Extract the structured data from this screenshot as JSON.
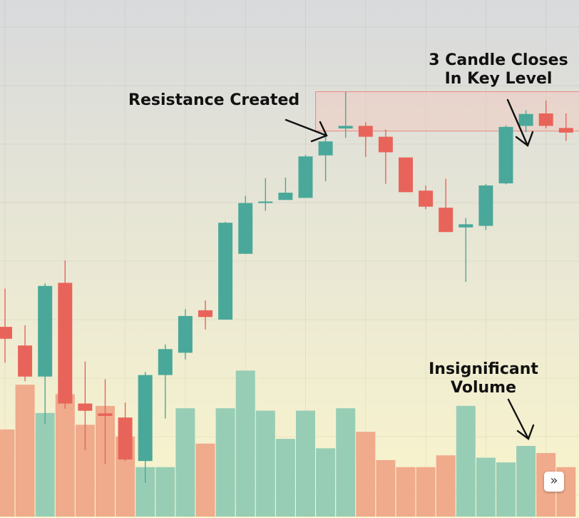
{
  "annotations": {
    "resistance": "Resistance Created",
    "closes_line1": "3 Candle Closes",
    "closes_line2": "In Key Level",
    "volume_line1": "Insignificant",
    "volume_line2": "Volume"
  },
  "scroll_button": {
    "icon": "double-chevron-right-icon",
    "glyph": "»"
  },
  "colors": {
    "up": "#49a89a",
    "down": "#e8645a",
    "volume_up": "#97cdb5",
    "volume_down": "#f0aa8c",
    "zone_fill": "#f5c8bc",
    "zone_border": "#e88a80",
    "bg_top": "#d8dadc",
    "bg_bottom": "#faf5cc"
  },
  "chart_data": {
    "type": "candlestick",
    "y_range": [
      0,
      100
    ],
    "volume_range": [
      0,
      100
    ],
    "zone": {
      "start_index": 16,
      "top": 82.3,
      "bottom": 74.7
    },
    "candles": [
      {
        "o": 36.9,
        "h": 44.3,
        "l": 30.0,
        "c": 34.6,
        "v": 37
      },
      {
        "o": 33.3,
        "h": 37.2,
        "l": 26.4,
        "c": 27.3,
        "v": 56
      },
      {
        "o": 27.3,
        "h": 45.3,
        "l": 18.1,
        "c": 44.8,
        "v": 44
      },
      {
        "o": 45.4,
        "h": 49.7,
        "l": 21.1,
        "c": 22.1,
        "v": 52
      },
      {
        "o": 22.1,
        "h": 30.2,
        "l": 13.1,
        "c": 20.7,
        "v": 39
      },
      {
        "o": 20.2,
        "h": 26.8,
        "l": 10.4,
        "c": 19.7,
        "v": 47
      },
      {
        "o": 19.4,
        "h": 22.3,
        "l": 11.0,
        "c": 11.3,
        "v": 34
      },
      {
        "o": 11.0,
        "h": 28.2,
        "l": 6.8,
        "c": 27.6,
        "v": 21
      },
      {
        "o": 27.6,
        "h": 33.5,
        "l": 19.2,
        "c": 32.6,
        "v": 21
      },
      {
        "o": 31.9,
        "h": 40.3,
        "l": 30.6,
        "c": 39.0,
        "v": 46
      },
      {
        "o": 40.1,
        "h": 42.0,
        "l": 36.4,
        "c": 38.8,
        "v": 31
      },
      {
        "o": 38.3,
        "h": 57.2,
        "l": 38.3,
        "c": 57.0,
        "v": 46
      },
      {
        "o": 51.0,
        "h": 62.2,
        "l": 51.0,
        "c": 60.8,
        "v": 62
      },
      {
        "o": 60.8,
        "h": 65.6,
        "l": 59.3,
        "c": 61.1,
        "v": 45
      },
      {
        "o": 61.4,
        "h": 65.7,
        "l": 61.4,
        "c": 62.8,
        "v": 33
      },
      {
        "o": 61.8,
        "h": 70.1,
        "l": 61.8,
        "c": 69.8,
        "v": 45
      },
      {
        "o": 70.0,
        "h": 74.5,
        "l": 65.0,
        "c": 72.7,
        "v": 29
      },
      {
        "o": 75.2,
        "h": 82.3,
        "l": 73.4,
        "c": 75.7,
        "v": 46
      },
      {
        "o": 75.7,
        "h": 76.4,
        "l": 69.7,
        "c": 73.6,
        "v": 36
      },
      {
        "o": 73.6,
        "h": 75.0,
        "l": 64.5,
        "c": 70.6,
        "v": 24
      },
      {
        "o": 69.6,
        "h": 69.6,
        "l": 62.9,
        "c": 62.9,
        "v": 21
      },
      {
        "o": 63.2,
        "h": 64.2,
        "l": 59.6,
        "c": 60.1,
        "v": 21
      },
      {
        "o": 59.9,
        "h": 65.5,
        "l": 55.2,
        "c": 55.2,
        "v": 26
      },
      {
        "o": 56.1,
        "h": 57.9,
        "l": 45.6,
        "c": 56.7,
        "v": 47
      },
      {
        "o": 56.4,
        "h": 64.5,
        "l": 55.6,
        "c": 64.2,
        "v": 25
      },
      {
        "o": 64.6,
        "h": 75.8,
        "l": 64.4,
        "c": 75.5,
        "v": 23
      },
      {
        "o": 75.7,
        "h": 78.7,
        "l": 74.5,
        "c": 78.0,
        "v": 30
      },
      {
        "o": 78.1,
        "h": 80.6,
        "l": 75.2,
        "c": 75.7,
        "v": 27
      },
      {
        "o": 75.3,
        "h": 78.1,
        "l": 72.8,
        "c": 74.4,
        "v": 21
      }
    ]
  }
}
